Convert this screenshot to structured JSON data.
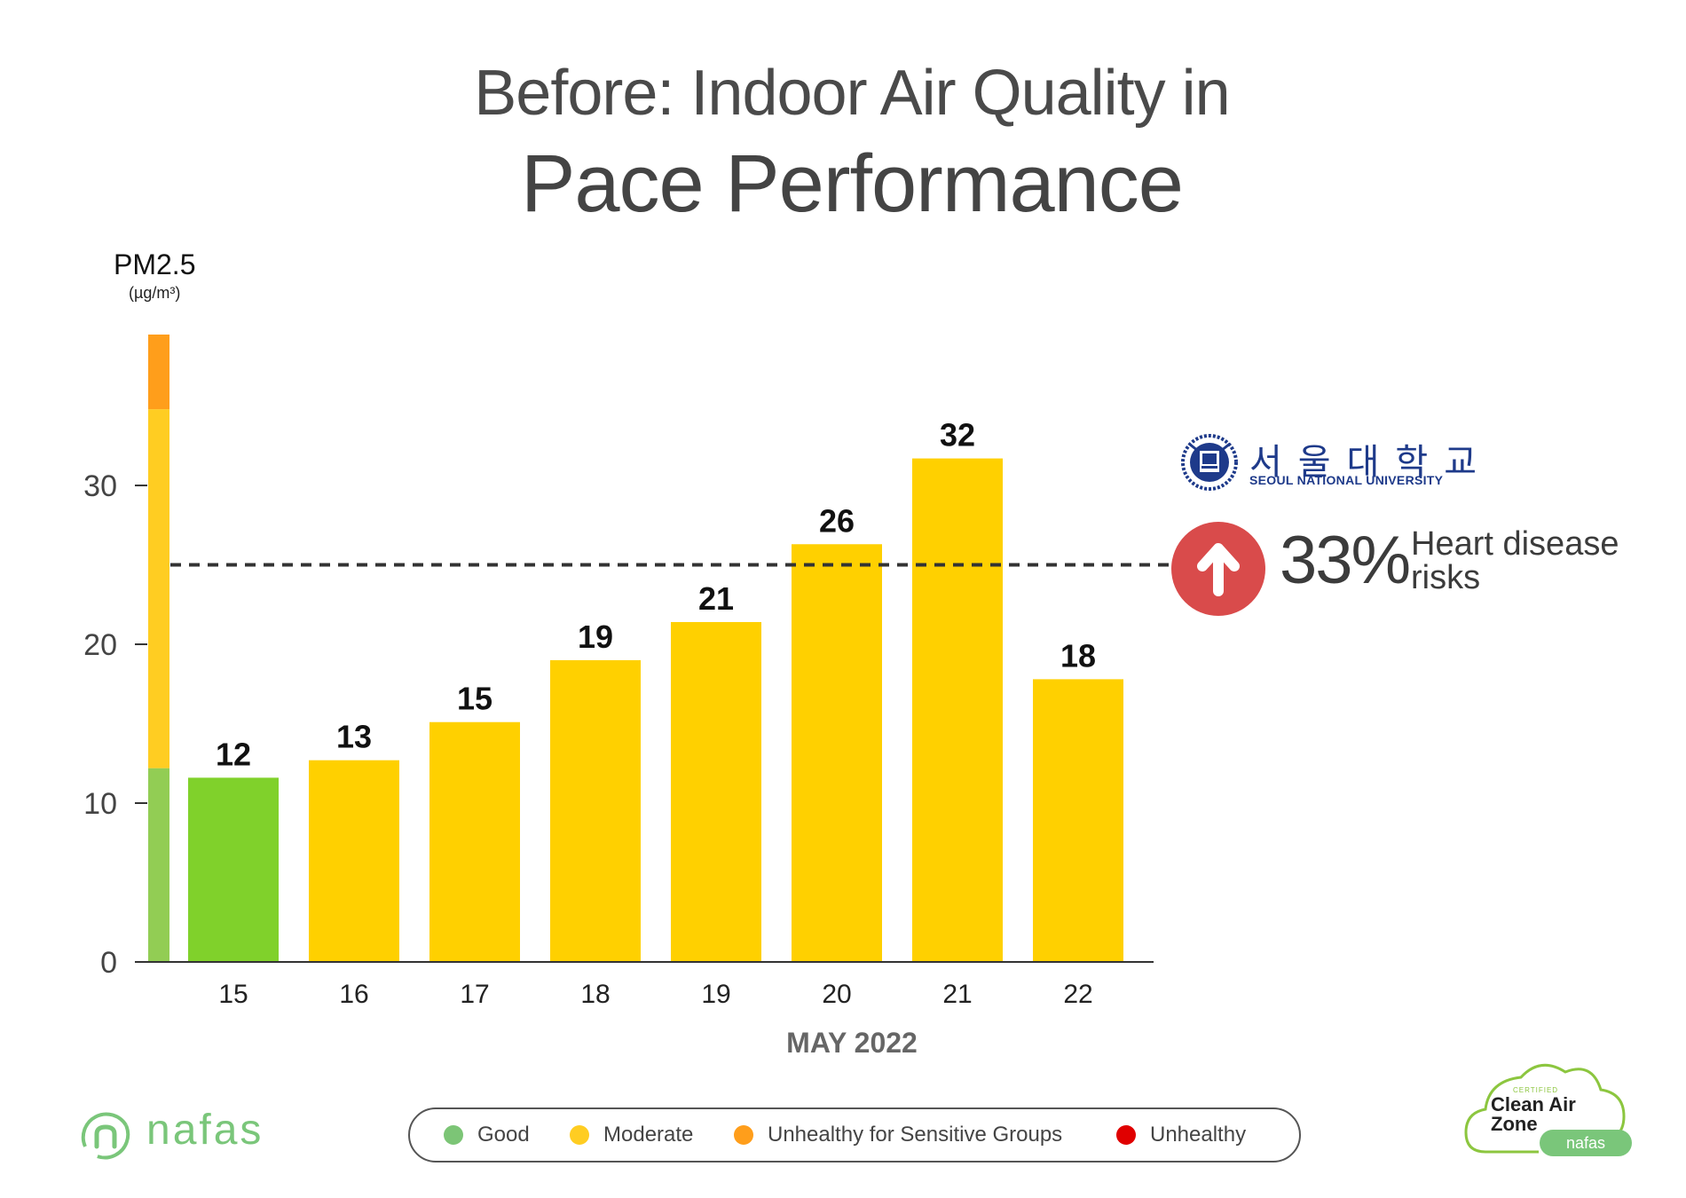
{
  "header": {
    "title_line1": "Before:  Indoor Air Quality in",
    "title_line2": "Pace Performance"
  },
  "y_axis": {
    "label": "PM2.5",
    "unit": "(µg/m³)"
  },
  "chart_data": {
    "type": "bar",
    "title": "Before:  Indoor Air Quality in Pace Performance",
    "xlabel": "MAY 2022",
    "ylabel": "PM2.5 (µg/m³)",
    "categories": [
      "15",
      "16",
      "17",
      "18",
      "19",
      "20",
      "21",
      "22"
    ],
    "values": [
      12,
      13,
      15,
      19,
      21,
      26,
      32,
      18
    ],
    "bar_heights": [
      11.6,
      12.7,
      15.1,
      19.0,
      21.4,
      26.3,
      31.7,
      17.8
    ],
    "bar_colors": [
      "#80d12b",
      "#ffd000",
      "#ffd000",
      "#ffd000",
      "#ffd000",
      "#ffd000",
      "#ffd000",
      "#ffd000"
    ],
    "ylim": [
      0,
      39.5
    ],
    "yticks": [
      0,
      10,
      20,
      30
    ],
    "reference_line": 25,
    "scale_bands": [
      {
        "from": 0,
        "to": 12.2,
        "color": "#92cd54"
      },
      {
        "from": 12.2,
        "to": 34.8,
        "color": "#ffcd22"
      },
      {
        "from": 34.8,
        "to": 39.5,
        "color": "#ff9e1b"
      }
    ],
    "grid": false
  },
  "annotation": {
    "institution_korean": "서울대학교",
    "institution_english": "SEOUL NATIONAL UNIVERSITY",
    "seal_text": "VERITAS LUX MEA",
    "percent": "33%",
    "text": "Heart disease risks",
    "circle_color": "#d94b4b"
  },
  "legend": [
    {
      "label": "Good",
      "color": "#7cc576"
    },
    {
      "label": "Moderate",
      "color": "#ffcd22"
    },
    {
      "label": "Unhealthy for  Sensitive Groups",
      "color": "#ff9e1b"
    },
    {
      "label": "Unhealthy",
      "color": "#e00000"
    }
  ],
  "brand": {
    "name": "nafas",
    "badge_small": "CERTIFIED",
    "badge_main": "Clean Air Zone",
    "badge_brand": "nafas"
  }
}
